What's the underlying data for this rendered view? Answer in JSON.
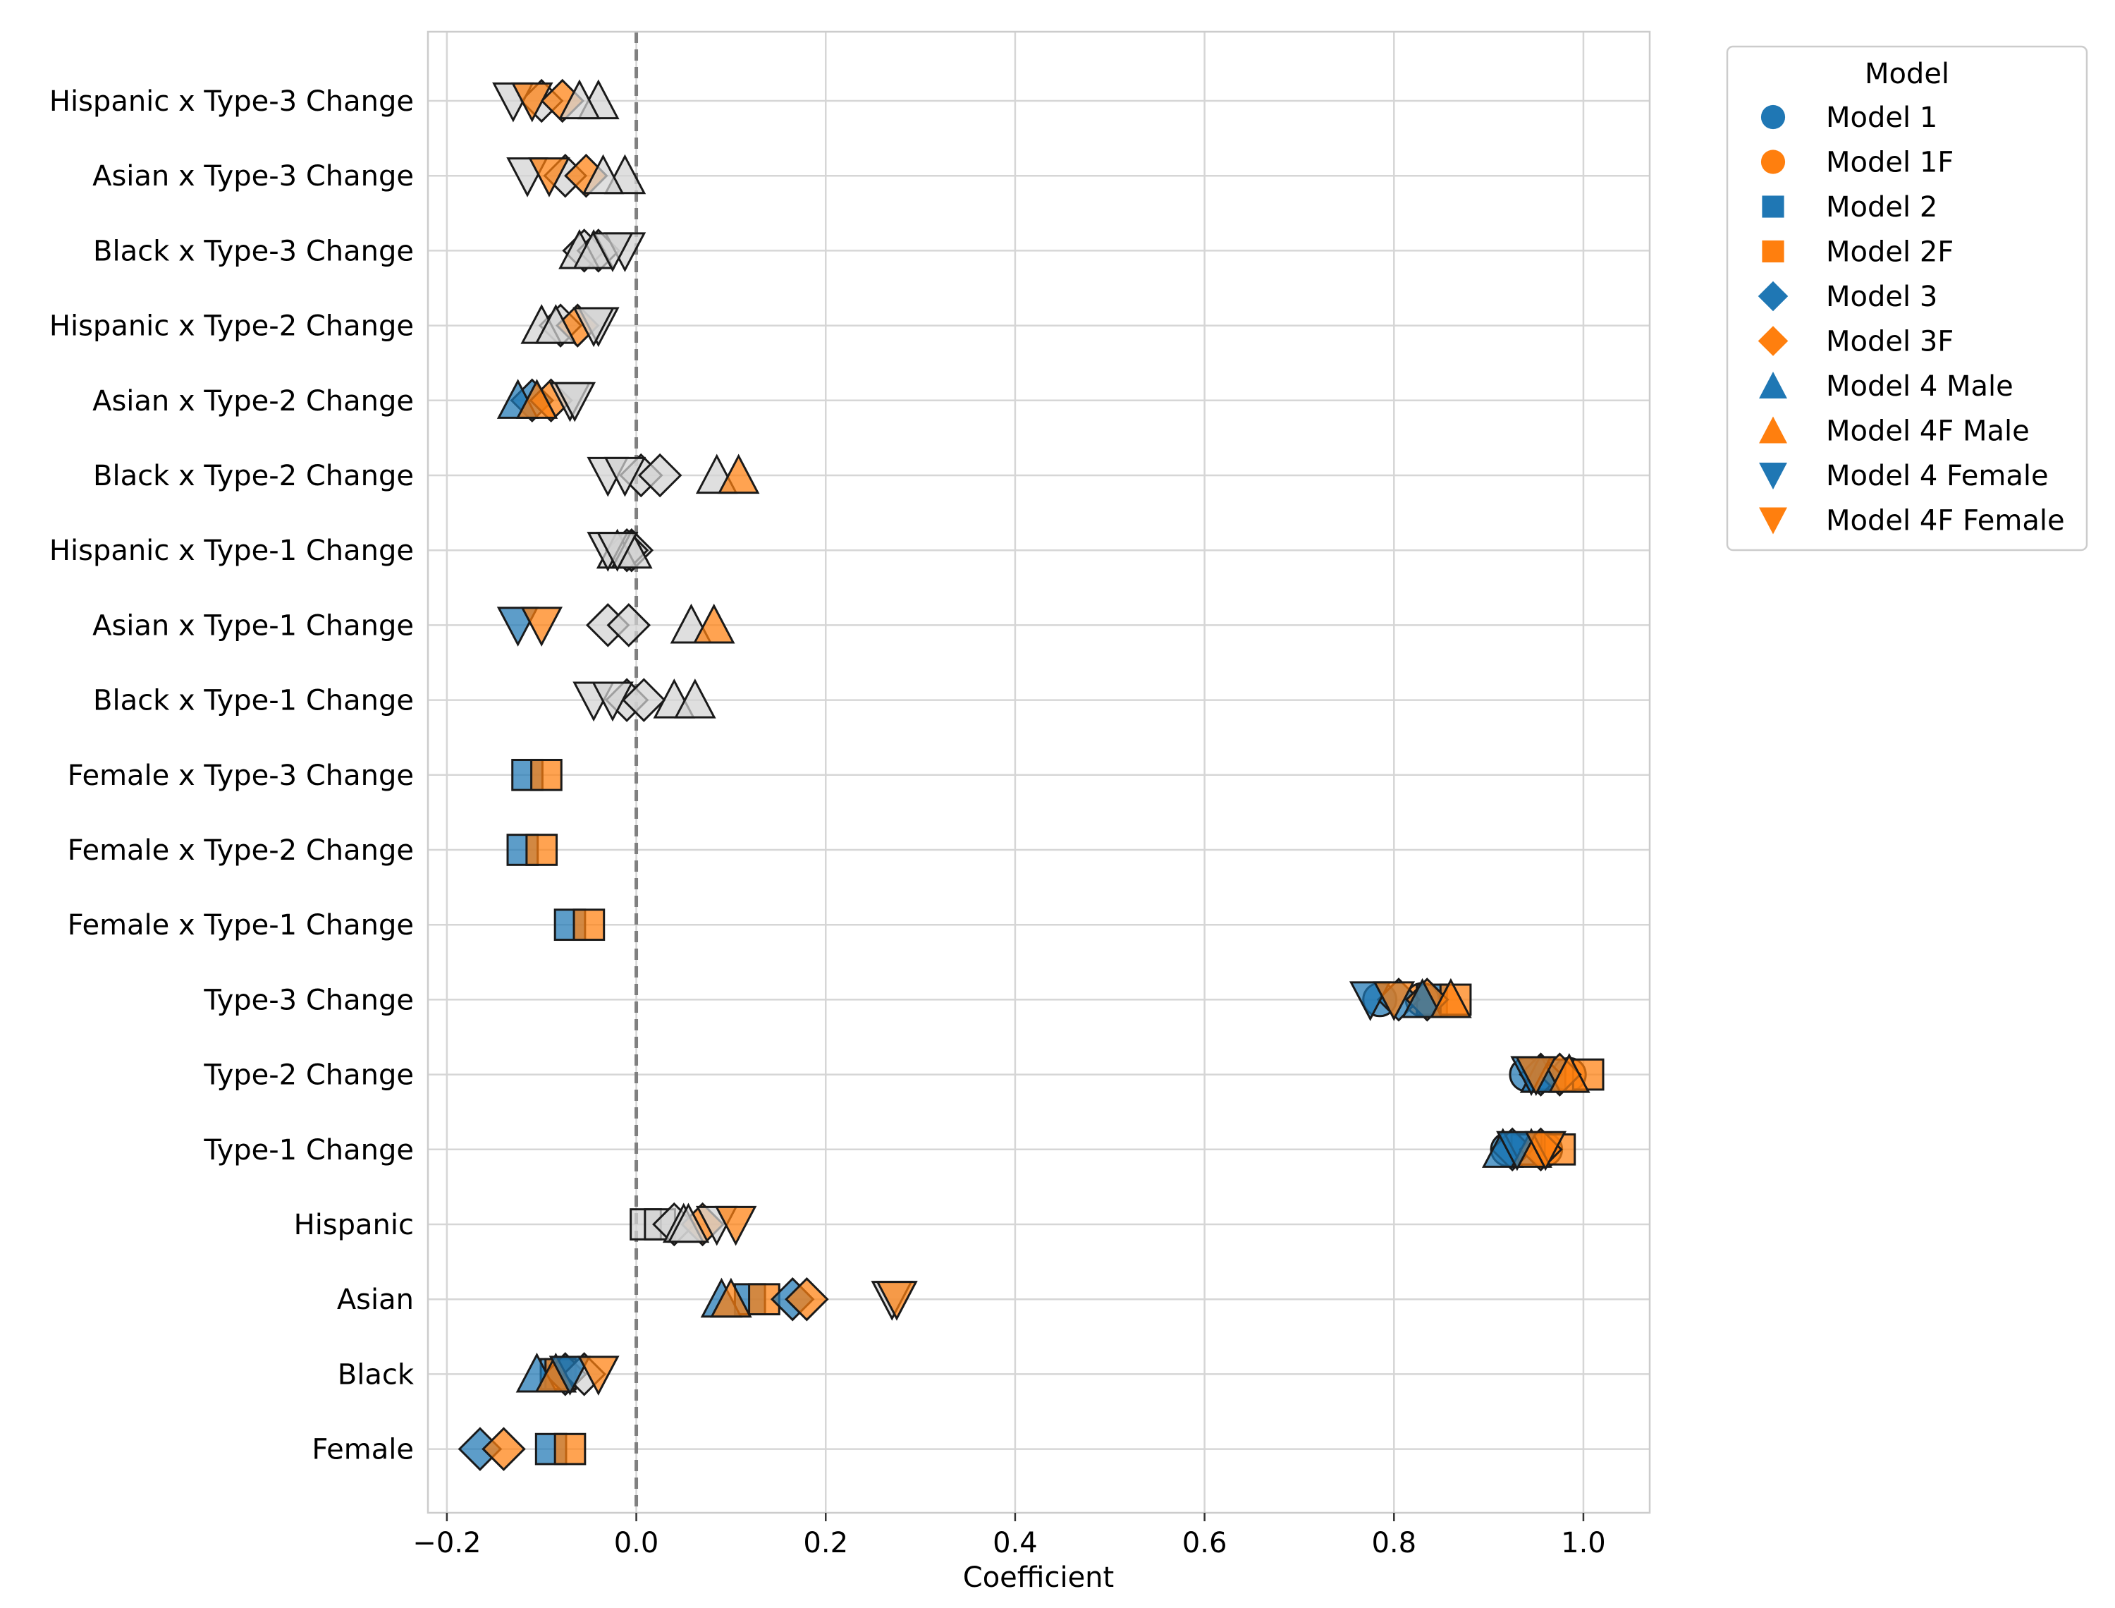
{
  "chart_data": {
    "type": "scatter",
    "xlabel": "Coefficient",
    "ylabel": "",
    "xlim": [
      -0.22,
      1.07
    ],
    "xticks": [
      -0.2,
      0.0,
      0.2,
      0.4,
      0.6,
      0.8,
      1.0
    ],
    "xtick_labels": [
      "−0.2",
      "0.0",
      "0.2",
      "0.4",
      "0.6",
      "0.8",
      "1.0"
    ],
    "reference_line_x": 0.0,
    "grid": true,
    "legend_title": "Model",
    "legend_position": "outside-top-right",
    "nonsignificant_color": "#d3d3d3",
    "categories": [
      "Hispanic x Type-3 Change",
      "Asian x Type-3 Change",
      "Black x Type-3 Change",
      "Hispanic x Type-2 Change",
      "Asian x Type-2 Change",
      "Black x Type-2 Change",
      "Hispanic x Type-1 Change",
      "Asian x Type-1 Change",
      "Black x Type-1 Change",
      "Female x Type-3 Change",
      "Female x Type-2 Change",
      "Female x Type-1 Change",
      "Type-3 Change",
      "Type-2 Change",
      "Type-1 Change",
      "Hispanic",
      "Asian",
      "Black",
      "Female"
    ],
    "series": [
      {
        "name": "Model 1",
        "marker": "circle",
        "color": "#1f77b4",
        "points": [
          {
            "category": "Type-3 Change",
            "value": 0.785,
            "significant": true
          },
          {
            "category": "Type-2 Change",
            "value": 0.94,
            "significant": true
          },
          {
            "category": "Type-1 Change",
            "value": 0.92,
            "significant": true
          }
        ]
      },
      {
        "name": "Model 1F",
        "marker": "circle",
        "color": "#ff7f0e",
        "points": [
          {
            "category": "Type-3 Change",
            "value": 0.83,
            "significant": true
          },
          {
            "category": "Type-2 Change",
            "value": 0.985,
            "significant": true
          },
          {
            "category": "Type-1 Change",
            "value": 0.96,
            "significant": true
          }
        ]
      },
      {
        "name": "Model 2",
        "marker": "square",
        "color": "#1f77b4",
        "points": [
          {
            "category": "Female x Type-3 Change",
            "value": -0.115,
            "significant": true
          },
          {
            "category": "Female x Type-2 Change",
            "value": -0.12,
            "significant": true
          },
          {
            "category": "Female x Type-1 Change",
            "value": -0.07,
            "significant": true
          },
          {
            "category": "Type-3 Change",
            "value": 0.84,
            "significant": true
          },
          {
            "category": "Type-2 Change",
            "value": 0.965,
            "significant": true
          },
          {
            "category": "Type-1 Change",
            "value": 0.94,
            "significant": true
          },
          {
            "category": "Hispanic",
            "value": 0.01,
            "significant": false
          },
          {
            "category": "Asian",
            "value": 0.12,
            "significant": true
          },
          {
            "category": "Black",
            "value": -0.085,
            "significant": true
          },
          {
            "category": "Female",
            "value": -0.09,
            "significant": true
          }
        ]
      },
      {
        "name": "Model 2F",
        "marker": "square",
        "color": "#ff7f0e",
        "points": [
          {
            "category": "Female x Type-3 Change",
            "value": -0.095,
            "significant": true
          },
          {
            "category": "Female x Type-2 Change",
            "value": -0.1,
            "significant": true
          },
          {
            "category": "Female x Type-1 Change",
            "value": -0.05,
            "significant": true
          },
          {
            "category": "Type-3 Change",
            "value": 0.865,
            "significant": true
          },
          {
            "category": "Type-2 Change",
            "value": 1.005,
            "significant": true
          },
          {
            "category": "Type-1 Change",
            "value": 0.975,
            "significant": true
          },
          {
            "category": "Hispanic",
            "value": 0.025,
            "significant": false
          },
          {
            "category": "Asian",
            "value": 0.135,
            "significant": true
          },
          {
            "category": "Black",
            "value": -0.08,
            "significant": true
          },
          {
            "category": "Female",
            "value": -0.07,
            "significant": true
          }
        ]
      },
      {
        "name": "Model 3",
        "marker": "diamond",
        "color": "#1f77b4",
        "points": [
          {
            "category": "Hispanic x Type-3 Change",
            "value": -0.1,
            "significant": false
          },
          {
            "category": "Asian x Type-3 Change",
            "value": -0.075,
            "significant": false
          },
          {
            "category": "Black x Type-3 Change",
            "value": -0.055,
            "significant": false
          },
          {
            "category": "Hispanic x Type-2 Change",
            "value": -0.08,
            "significant": false
          },
          {
            "category": "Asian x Type-2 Change",
            "value": -0.11,
            "significant": true
          },
          {
            "category": "Black x Type-2 Change",
            "value": 0.005,
            "significant": false
          },
          {
            "category": "Hispanic x Type-1 Change",
            "value": -0.005,
            "significant": false
          },
          {
            "category": "Asian x Type-1 Change",
            "value": -0.03,
            "significant": false
          },
          {
            "category": "Black x Type-1 Change",
            "value": -0.01,
            "significant": false
          },
          {
            "category": "Type-3 Change",
            "value": 0.805,
            "significant": true
          },
          {
            "category": "Type-2 Change",
            "value": 0.955,
            "significant": true
          },
          {
            "category": "Type-1 Change",
            "value": 0.925,
            "significant": true
          },
          {
            "category": "Hispanic",
            "value": 0.04,
            "significant": false
          },
          {
            "category": "Asian",
            "value": 0.165,
            "significant": true
          },
          {
            "category": "Black",
            "value": -0.075,
            "significant": true
          },
          {
            "category": "Female",
            "value": -0.165,
            "significant": true
          }
        ]
      },
      {
        "name": "Model 3F",
        "marker": "diamond",
        "color": "#ff7f0e",
        "points": [
          {
            "category": "Hispanic x Type-3 Change",
            "value": -0.078,
            "significant": true
          },
          {
            "category": "Asian x Type-3 Change",
            "value": -0.053,
            "significant": true
          },
          {
            "category": "Black x Type-3 Change",
            "value": -0.04,
            "significant": false
          },
          {
            "category": "Hispanic x Type-2 Change",
            "value": -0.062,
            "significant": true
          },
          {
            "category": "Asian x Type-2 Change",
            "value": -0.09,
            "significant": true
          },
          {
            "category": "Black x Type-2 Change",
            "value": 0.025,
            "significant": false
          },
          {
            "category": "Hispanic x Type-1 Change",
            "value": -0.01,
            "significant": false
          },
          {
            "category": "Asian x Type-1 Change",
            "value": -0.008,
            "significant": false
          },
          {
            "category": "Black x Type-1 Change",
            "value": 0.008,
            "significant": false
          },
          {
            "category": "Type-3 Change",
            "value": 0.835,
            "significant": true
          },
          {
            "category": "Type-2 Change",
            "value": 0.975,
            "significant": true
          },
          {
            "category": "Type-1 Change",
            "value": 0.955,
            "significant": true
          },
          {
            "category": "Hispanic",
            "value": 0.07,
            "significant": true
          },
          {
            "category": "Asian",
            "value": 0.18,
            "significant": true
          },
          {
            "category": "Black",
            "value": -0.055,
            "significant": false
          },
          {
            "category": "Female",
            "value": -0.14,
            "significant": true
          }
        ]
      },
      {
        "name": "Model 4 Male",
        "marker": "triangle-up",
        "color": "#1f77b4",
        "points": [
          {
            "category": "Hispanic x Type-3 Change",
            "value": -0.04,
            "significant": false
          },
          {
            "category": "Asian x Type-3 Change",
            "value": -0.012,
            "significant": false
          },
          {
            "category": "Black x Type-3 Change",
            "value": -0.06,
            "significant": false
          },
          {
            "category": "Hispanic x Type-2 Change",
            "value": -0.1,
            "significant": false
          },
          {
            "category": "Asian x Type-2 Change",
            "value": -0.125,
            "significant": true
          },
          {
            "category": "Black x Type-2 Change",
            "value": 0.085,
            "significant": false
          },
          {
            "category": "Hispanic x Type-1 Change",
            "value": -0.02,
            "significant": false
          },
          {
            "category": "Asian x Type-1 Change",
            "value": 0.058,
            "significant": false
          },
          {
            "category": "Black x Type-1 Change",
            "value": 0.04,
            "significant": false
          },
          {
            "category": "Type-3 Change",
            "value": 0.83,
            "significant": true
          },
          {
            "category": "Type-2 Change",
            "value": 0.955,
            "significant": true
          },
          {
            "category": "Type-1 Change",
            "value": 0.915,
            "significant": true
          },
          {
            "category": "Hispanic",
            "value": 0.05,
            "significant": false
          },
          {
            "category": "Asian",
            "value": 0.09,
            "significant": true
          },
          {
            "category": "Black",
            "value": -0.105,
            "significant": true
          }
        ]
      },
      {
        "name": "Model 4F Male",
        "marker": "triangle-up",
        "color": "#ff7f0e",
        "points": [
          {
            "category": "Hispanic x Type-3 Change",
            "value": -0.06,
            "significant": false
          },
          {
            "category": "Asian x Type-3 Change",
            "value": -0.035,
            "significant": false
          },
          {
            "category": "Black x Type-3 Change",
            "value": -0.045,
            "significant": false
          },
          {
            "category": "Hispanic x Type-2 Change",
            "value": -0.085,
            "significant": false
          },
          {
            "category": "Asian x Type-2 Change",
            "value": -0.105,
            "significant": true
          },
          {
            "category": "Black x Type-2 Change",
            "value": 0.108,
            "significant": true
          },
          {
            "category": "Hispanic x Type-1 Change",
            "value": -0.005,
            "significant": false
          },
          {
            "category": "Asian x Type-1 Change",
            "value": 0.082,
            "significant": true
          },
          {
            "category": "Black x Type-1 Change",
            "value": 0.062,
            "significant": false
          },
          {
            "category": "Type-3 Change",
            "value": 0.86,
            "significant": true
          },
          {
            "category": "Type-2 Change",
            "value": 0.985,
            "significant": true
          },
          {
            "category": "Type-1 Change",
            "value": 0.945,
            "significant": true
          },
          {
            "category": "Hispanic",
            "value": 0.055,
            "significant": false
          },
          {
            "category": "Asian",
            "value": 0.1,
            "significant": true
          },
          {
            "category": "Black",
            "value": -0.085,
            "significant": true
          }
        ]
      },
      {
        "name": "Model 4 Female",
        "marker": "triangle-down",
        "color": "#1f77b4",
        "points": [
          {
            "category": "Hispanic x Type-3 Change",
            "value": -0.13,
            "significant": false
          },
          {
            "category": "Asian x Type-3 Change",
            "value": -0.115,
            "significant": false
          },
          {
            "category": "Black x Type-3 Change",
            "value": -0.012,
            "significant": false
          },
          {
            "category": "Hispanic x Type-2 Change",
            "value": -0.04,
            "significant": false
          },
          {
            "category": "Asian x Type-2 Change",
            "value": -0.07,
            "significant": false
          },
          {
            "category": "Black x Type-2 Change",
            "value": -0.03,
            "significant": false
          },
          {
            "category": "Hispanic x Type-1 Change",
            "value": -0.03,
            "significant": false
          },
          {
            "category": "Asian x Type-1 Change",
            "value": -0.125,
            "significant": true
          },
          {
            "category": "Black x Type-1 Change",
            "value": -0.045,
            "significant": false
          },
          {
            "category": "Type-3 Change",
            "value": 0.775,
            "significant": true
          },
          {
            "category": "Type-2 Change",
            "value": 0.945,
            "significant": true
          },
          {
            "category": "Type-1 Change",
            "value": 0.93,
            "significant": true
          },
          {
            "category": "Hispanic",
            "value": 0.085,
            "significant": false
          },
          {
            "category": "Asian",
            "value": 0.27,
            "significant": false
          },
          {
            "category": "Black",
            "value": -0.07,
            "significant": true
          }
        ]
      },
      {
        "name": "Model 4F Female",
        "marker": "triangle-down",
        "color": "#ff7f0e",
        "points": [
          {
            "category": "Hispanic x Type-3 Change",
            "value": -0.11,
            "significant": true
          },
          {
            "category": "Asian x Type-3 Change",
            "value": -0.092,
            "significant": true
          },
          {
            "category": "Black x Type-3 Change",
            "value": -0.025,
            "significant": false
          },
          {
            "category": "Hispanic x Type-2 Change",
            "value": -0.045,
            "significant": false
          },
          {
            "category": "Asian x Type-2 Change",
            "value": -0.065,
            "significant": false
          },
          {
            "category": "Black x Type-2 Change",
            "value": -0.012,
            "significant": false
          },
          {
            "category": "Hispanic x Type-1 Change",
            "value": -0.02,
            "significant": false
          },
          {
            "category": "Asian x Type-1 Change",
            "value": -0.1,
            "significant": true
          },
          {
            "category": "Black x Type-1 Change",
            "value": -0.025,
            "significant": false
          },
          {
            "category": "Type-3 Change",
            "value": 0.8,
            "significant": true
          },
          {
            "category": "Type-2 Change",
            "value": 0.95,
            "significant": true
          },
          {
            "category": "Type-1 Change",
            "value": 0.96,
            "significant": true
          },
          {
            "category": "Hispanic",
            "value": 0.105,
            "significant": true
          },
          {
            "category": "Asian",
            "value": 0.275,
            "significant": true
          },
          {
            "category": "Black",
            "value": -0.04,
            "significant": true
          }
        ]
      }
    ]
  }
}
